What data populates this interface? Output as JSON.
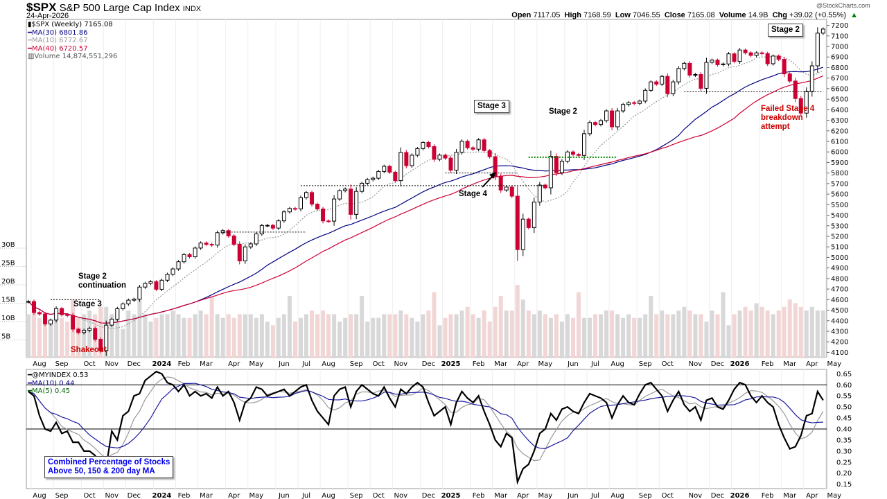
{
  "header": {
    "symbol": "$SPX",
    "name": "S&P 500 Large Cap Index",
    "exchange": "INDX",
    "date": "24-Apr-2026",
    "watermark": "@StockCharts.com",
    "ohlc": [
      {
        "k": "Open",
        "v": "7117.05"
      },
      {
        "k": "High",
        "v": "7168.59"
      },
      {
        "k": "Low",
        "v": "7046.55"
      },
      {
        "k": "Close",
        "v": "7165.08"
      },
      {
        "k": "Volume",
        "v": "14.9B"
      },
      {
        "k": "Chg",
        "v": "+39.02 (+0.55%)"
      }
    ]
  },
  "legend": {
    "price": "$SPX (Weekly) 7165.08",
    "ma30": "MA(30) 6801.86",
    "ma10": "MA(10) 6772.67",
    "ma40": "MA(40) 6720.57",
    "volume": "Volume 14,874,551,296"
  },
  "lower_legend": {
    "index": "@MYINDEX 0.53",
    "ma10": "MA(10) 0.44",
    "ma5": "MA(5) 0.45",
    "description_line1": "Combined Percentage of Stocks",
    "description_line2": "Above 50, 150 & 200 day MA"
  },
  "annotations": {
    "stage2_top": "Stage 2",
    "stage3_2025": "Stage 3",
    "stage2_2025": "Stage 2",
    "stage4_2025": "Stage 4",
    "failed1": "Failed Stage 4",
    "failed2": "breakdown",
    "failed3": "attempt",
    "stage2c1": "Stage 2",
    "stage2c2": "continuation",
    "stage3_2023": "Stage 3",
    "shakeout": "Shakeout"
  },
  "colors": {
    "up": "#000000",
    "down": "#cc0033",
    "ma30": "#000080",
    "ma10": "#999999",
    "ma40": "#cc0033",
    "vol_up": "#d8d8d8",
    "vol_down": "#f2d5d5"
  },
  "chart_data": [
    {
      "type": "candlestick",
      "title": "$SPX (Weekly)",
      "start_date": "2023-07-28",
      "interval": "weekly",
      "price_ticks": [
        4100,
        4200,
        4300,
        4400,
        4500,
        4600,
        4700,
        4800,
        4900,
        5000,
        5100,
        5200,
        5300,
        5400,
        5500,
        5600,
        5700,
        5800,
        5900,
        6000,
        6100,
        6200,
        6300,
        6400,
        6500,
        6600,
        6700,
        6800,
        6900,
        7000,
        7100,
        7200
      ],
      "ylim": [
        4070,
        7230
      ],
      "volume_ticks": [
        "5B",
        "10B",
        "15B",
        "20B",
        "25B",
        "30B"
      ],
      "month_labels": [
        "Aug",
        "Sep",
        "Oct",
        "Nov",
        "Dec",
        "2024",
        "Feb",
        "Mar",
        "Apr",
        "May",
        "Jun",
        "Jul",
        "Aug",
        "Sep",
        "Oct",
        "Nov",
        "Dec",
        "2025",
        "Feb",
        "Mar",
        "Apr",
        "May",
        "Jun",
        "Jul",
        "Aug",
        "Sep",
        "Oct",
        "Nov",
        "Dec",
        "2026",
        "Feb",
        "Mar",
        "Apr",
        "May"
      ],
      "close": [
        4582,
        4478,
        4464,
        4370,
        4406,
        4516,
        4457,
        4450,
        4320,
        4288,
        4309,
        4327,
        4224,
        4117,
        4358,
        4415,
        4514,
        4559,
        4595,
        4604,
        4719,
        4754,
        4770,
        4698,
        4784,
        4840,
        4891,
        4959,
        5027,
        5006,
        5089,
        5137,
        5124,
        5117,
        5234,
        5254,
        5204,
        5124,
        4967,
        5100,
        5128,
        5223,
        5303,
        5304,
        5278,
        5347,
        5432,
        5464,
        5460,
        5567,
        5615,
        5505,
        5459,
        5346,
        5344,
        5554,
        5634,
        5648,
        5408,
        5626,
        5703,
        5738,
        5751,
        5815,
        5864,
        5808,
        5728,
        5995,
        5870,
        5969,
        6032,
        6090,
        6051,
        5930,
        5970,
        5942,
        5827,
        5997,
        6101,
        6040,
        6026,
        6115,
        6013,
        5955,
        5770,
        5639,
        5667,
        5581,
        5074,
        5363,
        5283,
        5525,
        5686,
        5660,
        5958,
        5803,
        5912,
        6000,
        5977,
        5967,
        6173,
        6279,
        6260,
        6297,
        6389,
        6238,
        6389,
        6450,
        6467,
        6460,
        6482,
        6584,
        6664,
        6643,
        6716,
        6553,
        6664,
        6791,
        6840,
        6728,
        6734,
        6603,
        6849,
        6870,
        6827,
        6834,
        6930,
        6858,
        6966,
        6940,
        6915,
        6939,
        6932,
        6836,
        6909,
        6878,
        6740,
        6672,
        6506,
        6368,
        6575,
        6816,
        7126,
        7165
      ],
      "volume_billions": [
        12,
        14,
        11,
        12,
        10,
        13,
        11,
        10,
        16,
        11,
        12,
        13,
        12,
        14,
        14,
        12,
        11,
        8,
        13,
        12,
        17,
        12,
        10,
        11,
        12,
        12,
        13,
        12,
        11,
        11,
        12,
        13,
        12,
        17,
        12,
        11,
        12,
        11,
        12,
        12,
        12,
        11,
        12,
        10,
        9,
        11,
        12,
        17,
        10,
        11,
        12,
        13,
        12,
        13,
        12,
        12,
        10,
        11,
        12,
        12,
        17,
        10,
        11,
        11,
        12,
        12,
        12,
        13,
        12,
        11,
        10,
        12,
        13,
        18,
        9,
        11,
        12,
        12,
        13,
        14,
        12,
        11,
        13,
        10,
        14,
        17,
        13,
        13,
        20,
        16,
        13,
        12,
        13,
        12,
        11,
        12,
        10,
        12,
        11,
        18,
        11,
        11,
        12,
        12,
        13,
        13,
        12,
        11,
        12,
        11,
        11,
        12,
        17,
        12,
        13,
        12,
        12,
        13,
        14,
        13,
        12,
        12,
        10,
        13,
        12,
        18,
        9,
        12,
        13,
        14,
        13,
        15,
        14,
        13,
        12,
        13,
        14,
        16,
        15,
        14,
        13,
        14,
        13,
        13
      ]
    },
    {
      "type": "line",
      "title": "@MYINDEX",
      "ylim": [
        0.13,
        0.67
      ],
      "ticks": [
        0.15,
        0.2,
        0.25,
        0.3,
        0.35,
        0.4,
        0.45,
        0.5,
        0.55,
        0.6,
        0.65
      ],
      "reference_lines": [
        0.4,
        0.6
      ],
      "values": [
        0.57,
        0.55,
        0.46,
        0.4,
        0.39,
        0.43,
        0.38,
        0.39,
        0.34,
        0.34,
        0.3,
        0.3,
        0.28,
        0.22,
        0.23,
        0.39,
        0.35,
        0.46,
        0.48,
        0.55,
        0.56,
        0.62,
        0.64,
        0.66,
        0.65,
        0.61,
        0.6,
        0.57,
        0.6,
        0.55,
        0.57,
        0.55,
        0.56,
        0.54,
        0.59,
        0.55,
        0.57,
        0.52,
        0.44,
        0.52,
        0.54,
        0.59,
        0.58,
        0.55,
        0.56,
        0.57,
        0.58,
        0.55,
        0.57,
        0.59,
        0.6,
        0.53,
        0.48,
        0.45,
        0.42,
        0.55,
        0.58,
        0.59,
        0.5,
        0.57,
        0.6,
        0.58,
        0.56,
        0.55,
        0.59,
        0.54,
        0.5,
        0.58,
        0.56,
        0.59,
        0.61,
        0.59,
        0.52,
        0.46,
        0.48,
        0.5,
        0.42,
        0.52,
        0.57,
        0.54,
        0.52,
        0.55,
        0.48,
        0.42,
        0.35,
        0.32,
        0.38,
        0.36,
        0.16,
        0.22,
        0.24,
        0.3,
        0.38,
        0.4,
        0.47,
        0.44,
        0.49,
        0.5,
        0.48,
        0.47,
        0.52,
        0.56,
        0.55,
        0.54,
        0.52,
        0.45,
        0.51,
        0.55,
        0.52,
        0.51,
        0.56,
        0.6,
        0.61,
        0.58,
        0.55,
        0.48,
        0.53,
        0.57,
        0.51,
        0.48,
        0.5,
        0.44,
        0.53,
        0.54,
        0.5,
        0.49,
        0.53,
        0.58,
        0.61,
        0.6,
        0.55,
        0.52,
        0.55,
        0.52,
        0.5,
        0.42,
        0.36,
        0.31,
        0.32,
        0.37,
        0.46,
        0.47,
        0.57,
        0.53
      ]
    }
  ]
}
